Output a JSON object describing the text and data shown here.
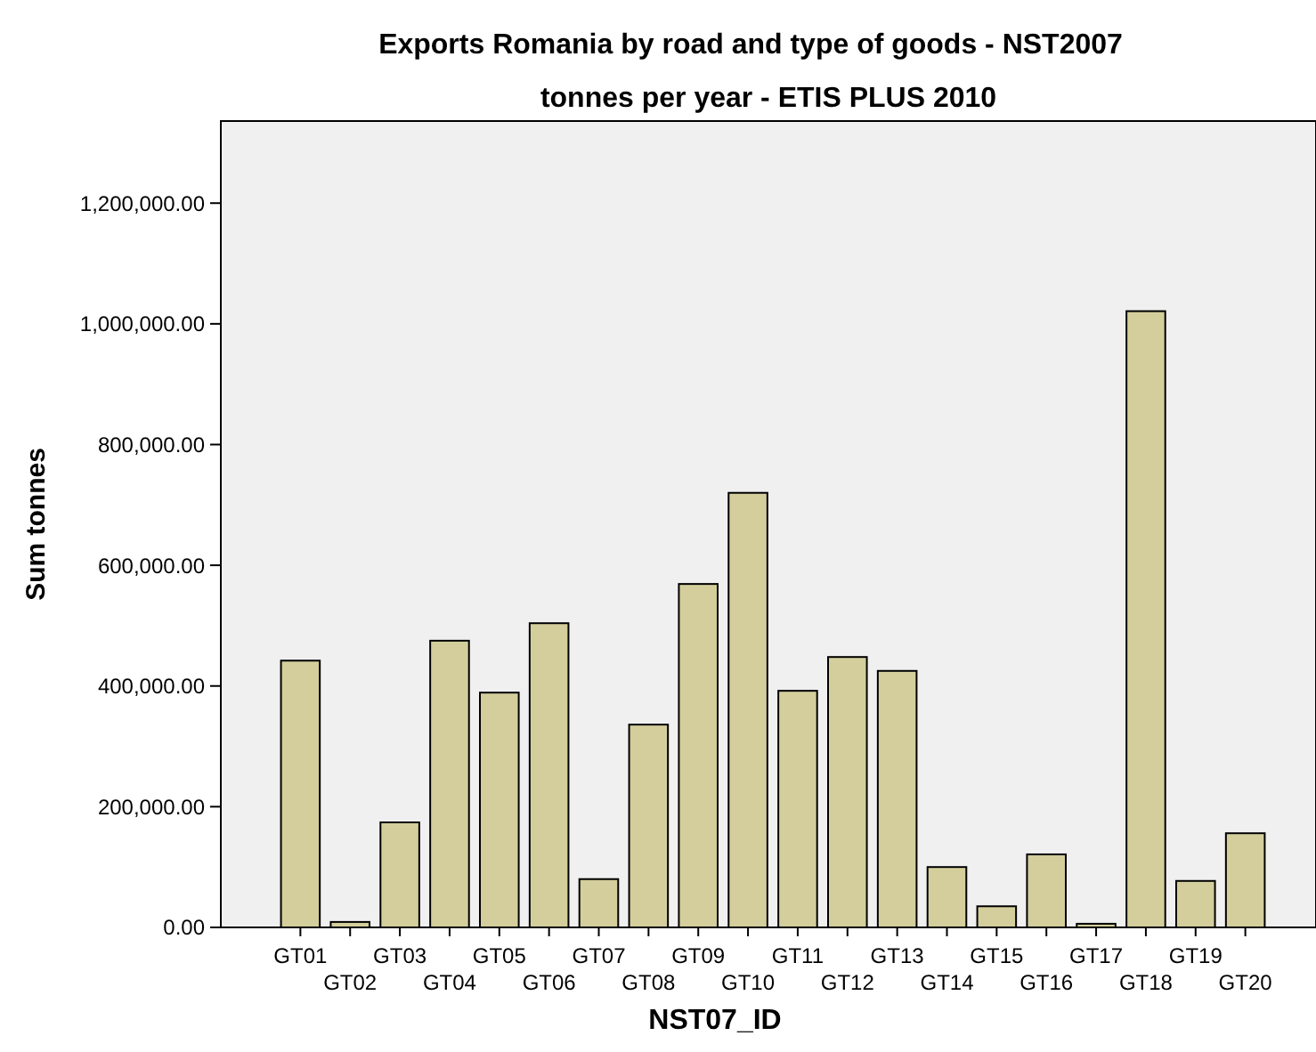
{
  "chart_data": {
    "type": "bar",
    "title": "Exports Romania by road and type of goods - NST2007",
    "subtitle": "tonnes per year - ETIS PLUS 2010",
    "xlabel": "NST07_ID",
    "ylabel": "Sum tonnes",
    "categories": [
      "GT01",
      "GT02",
      "GT03",
      "GT04",
      "GT05",
      "GT06",
      "GT07",
      "GT08",
      "GT09",
      "GT10",
      "GT11",
      "GT12",
      "GT13",
      "GT14",
      "GT15",
      "GT16",
      "GT17",
      "GT18",
      "GT19",
      "GT20"
    ],
    "values": [
      442000,
      9000,
      174000,
      475000,
      389000,
      504000,
      80000,
      336000,
      569000,
      720000,
      392000,
      448000,
      425000,
      100000,
      35000,
      121000,
      6000,
      1021000,
      77000,
      156000
    ],
    "color": "#d3ce9b",
    "ylim": [
      0,
      1336000
    ],
    "yticks": [
      {
        "value": 0,
        "label": "0.00"
      },
      {
        "value": 200000,
        "label": "200,000.00"
      },
      {
        "value": 400000,
        "label": "400,000.00"
      },
      {
        "value": 600000,
        "label": "600,000.00"
      },
      {
        "value": 800000,
        "label": "800,000.00"
      },
      {
        "value": 1000000,
        "label": "1,000,000.00"
      },
      {
        "value": 1200000,
        "label": "1,200,000.00"
      }
    ],
    "grid": false
  }
}
